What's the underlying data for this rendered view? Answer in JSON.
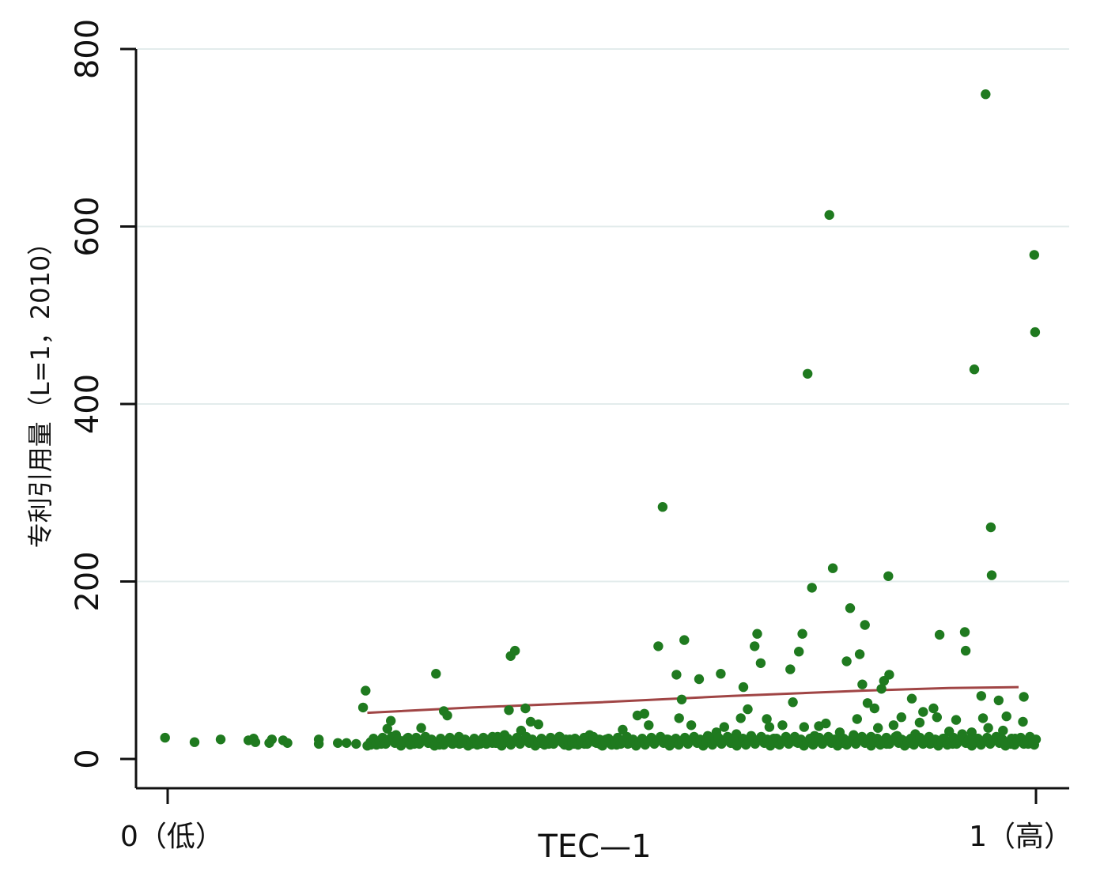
{
  "chart_data": {
    "type": "scatter",
    "title": "",
    "xlabel": "TEC—1",
    "ylabel": "专利引用量（L=1，2010）",
    "x_tick_labels": [
      {
        "x": 0,
        "label": "0（低）"
      },
      {
        "x": 1,
        "label": "1（高）"
      }
    ],
    "y_ticks": [
      0,
      200,
      400,
      600,
      800
    ],
    "xlim": [
      -0.04,
      1.04
    ],
    "ylim": [
      -33,
      800
    ],
    "grid": "horizontal",
    "colors": {
      "points": "#1f7a1f",
      "fit_line": "#a04545",
      "grid": "#e3ecec",
      "axis": "#111111"
    },
    "series": [
      {
        "kind": "points",
        "points": [
          [
            -0.003,
            24
          ],
          [
            0.031,
            19
          ],
          [
            0.061,
            22
          ],
          [
            0.093,
            21
          ],
          [
            0.099,
            23
          ],
          [
            0.101,
            19
          ],
          [
            0.117,
            18
          ],
          [
            0.12,
            22
          ],
          [
            0.133,
            21
          ],
          [
            0.138,
            18
          ],
          [
            0.174,
            17
          ],
          [
            0.174,
            22
          ],
          [
            0.196,
            18
          ],
          [
            0.206,
            18
          ],
          [
            0.217,
            17
          ],
          [
            0.225,
            58
          ],
          [
            0.228,
            77
          ],
          [
            0.234,
            16
          ],
          [
            0.24,
            18
          ],
          [
            0.246,
            17
          ],
          [
            0.25,
            22
          ],
          [
            0.253,
            34
          ],
          [
            0.257,
            43
          ],
          [
            0.263,
            27
          ],
          [
            0.27,
            20
          ],
          [
            0.277,
            24
          ],
          [
            0.284,
            17
          ],
          [
            0.29,
            21
          ],
          [
            0.292,
            35
          ],
          [
            0.3,
            18
          ],
          [
            0.305,
            20
          ],
          [
            0.309,
            96
          ],
          [
            0.313,
            16
          ],
          [
            0.318,
            54
          ],
          [
            0.322,
            49
          ],
          [
            0.328,
            17
          ],
          [
            0.336,
            17
          ],
          [
            0.343,
            21
          ],
          [
            0.35,
            17
          ],
          [
            0.36,
            20
          ],
          [
            0.367,
            22
          ],
          [
            0.374,
            18
          ],
          [
            0.38,
            25
          ],
          [
            0.36,
            17
          ],
          [
            0.38,
            18
          ],
          [
            0.395,
            116
          ],
          [
            0.4,
            122
          ],
          [
            0.393,
            55
          ],
          [
            0.388,
            27
          ],
          [
            0.407,
            32
          ],
          [
            0.412,
            57
          ],
          [
            0.418,
            42
          ],
          [
            0.421,
            19
          ],
          [
            0.427,
            39
          ],
          [
            0.43,
            18
          ],
          [
            0.439,
            17
          ],
          [
            0.447,
            20
          ],
          [
            0.451,
            25
          ],
          [
            0.457,
            16
          ],
          [
            0.463,
            22
          ],
          [
            0.468,
            17
          ],
          [
            0.474,
            19
          ],
          [
            0.48,
            17
          ],
          [
            0.486,
            27
          ],
          [
            0.492,
            19
          ],
          [
            0.499,
            16
          ],
          [
            0.505,
            22
          ],
          [
            0.511,
            18
          ],
          [
            0.517,
            16
          ],
          [
            0.524,
            33
          ],
          [
            0.53,
            17
          ],
          [
            0.536,
            21
          ],
          [
            0.541,
            49
          ],
          [
            0.549,
            51
          ],
          [
            0.554,
            38
          ],
          [
            0.56,
            20
          ],
          [
            0.565,
            127
          ],
          [
            0.57,
            284
          ],
          [
            0.576,
            22
          ],
          [
            0.58,
            17
          ],
          [
            0.586,
            95
          ],
          [
            0.589,
            46
          ],
          [
            0.592,
            67
          ],
          [
            0.595,
            134
          ],
          [
            0.599,
            19
          ],
          [
            0.603,
            38
          ],
          [
            0.606,
            24
          ],
          [
            0.612,
            90
          ],
          [
            0.618,
            17
          ],
          [
            0.622,
            26
          ],
          [
            0.628,
            22
          ],
          [
            0.632,
            30
          ],
          [
            0.637,
            96
          ],
          [
            0.641,
            36
          ],
          [
            0.645,
            21
          ],
          [
            0.651,
            18
          ],
          [
            0.655,
            28
          ],
          [
            0.66,
            46
          ],
          [
            0.663,
            81
          ],
          [
            0.668,
            56
          ],
          [
            0.672,
            26
          ],
          [
            0.676,
            127
          ],
          [
            0.679,
            141
          ],
          [
            0.683,
            108
          ],
          [
            0.685,
            22
          ],
          [
            0.69,
            45
          ],
          [
            0.693,
            36
          ],
          [
            0.698,
            23
          ],
          [
            0.703,
            17
          ],
          [
            0.708,
            38
          ],
          [
            0.712,
            25
          ],
          [
            0.717,
            101
          ],
          [
            0.72,
            64
          ],
          [
            0.724,
            19
          ],
          [
            0.727,
            121
          ],
          [
            0.731,
            141
          ],
          [
            0.733,
            36
          ],
          [
            0.737,
            434
          ],
          [
            0.742,
            193
          ],
          [
            0.745,
            26
          ],
          [
            0.75,
            37
          ],
          [
            0.754,
            17
          ],
          [
            0.758,
            40
          ],
          [
            0.762,
            613
          ],
          [
            0.766,
            215
          ],
          [
            0.77,
            21
          ],
          [
            0.774,
            30
          ],
          [
            0.778,
            18
          ],
          [
            0.782,
            110
          ],
          [
            0.786,
            170
          ],
          [
            0.79,
            27
          ],
          [
            0.794,
            45
          ],
          [
            0.797,
            118
          ],
          [
            0.8,
            84
          ],
          [
            0.803,
            151
          ],
          [
            0.806,
            63
          ],
          [
            0.81,
            25
          ],
          [
            0.814,
            57
          ],
          [
            0.818,
            35
          ],
          [
            0.822,
            79
          ],
          [
            0.825,
            88
          ],
          [
            0.828,
            17
          ],
          [
            0.831,
            95
          ],
          [
            0.83,
            206
          ],
          [
            0.836,
            38
          ],
          [
            0.84,
            26
          ],
          [
            0.845,
            47
          ],
          [
            0.849,
            20
          ],
          [
            0.853,
            18
          ],
          [
            0.857,
            68
          ],
          [
            0.861,
            28
          ],
          [
            0.866,
            41
          ],
          [
            0.87,
            53
          ],
          [
            0.874,
            21
          ],
          [
            0.878,
            17
          ],
          [
            0.882,
            57
          ],
          [
            0.886,
            47
          ],
          [
            0.889,
            140
          ],
          [
            0.893,
            23
          ],
          [
            0.897,
            19
          ],
          [
            0.9,
            31
          ],
          [
            0.904,
            17
          ],
          [
            0.908,
            44
          ],
          [
            0.912,
            20
          ],
          [
            0.915,
            28
          ],
          [
            0.918,
            143
          ],
          [
            0.919,
            122
          ],
          [
            0.922,
            18
          ],
          [
            0.926,
            30
          ],
          [
            0.929,
            439
          ],
          [
            0.933,
            23
          ],
          [
            0.937,
            71
          ],
          [
            0.939,
            46
          ],
          [
            0.942,
            749
          ],
          [
            0.945,
            35
          ],
          [
            0.948,
            261
          ],
          [
            0.949,
            207
          ],
          [
            0.953,
            21
          ],
          [
            0.957,
            66
          ],
          [
            0.962,
            32
          ],
          [
            0.966,
            48
          ],
          [
            0.971,
            17
          ],
          [
            0.976,
            23
          ],
          [
            0.981,
            20
          ],
          [
            0.985,
            42
          ],
          [
            0.986,
            70
          ],
          [
            0.991,
            17
          ],
          [
            0.998,
            568
          ],
          [
            0.999,
            481
          ],
          [
            0.998,
            16
          ]
        ]
      },
      {
        "kind": "fit_line",
        "points": [
          [
            0.23,
            52
          ],
          [
            0.35,
            58
          ],
          [
            0.5,
            64
          ],
          [
            0.65,
            71
          ],
          [
            0.8,
            77
          ],
          [
            0.9,
            80
          ],
          [
            0.98,
            81
          ]
        ]
      }
    ]
  }
}
